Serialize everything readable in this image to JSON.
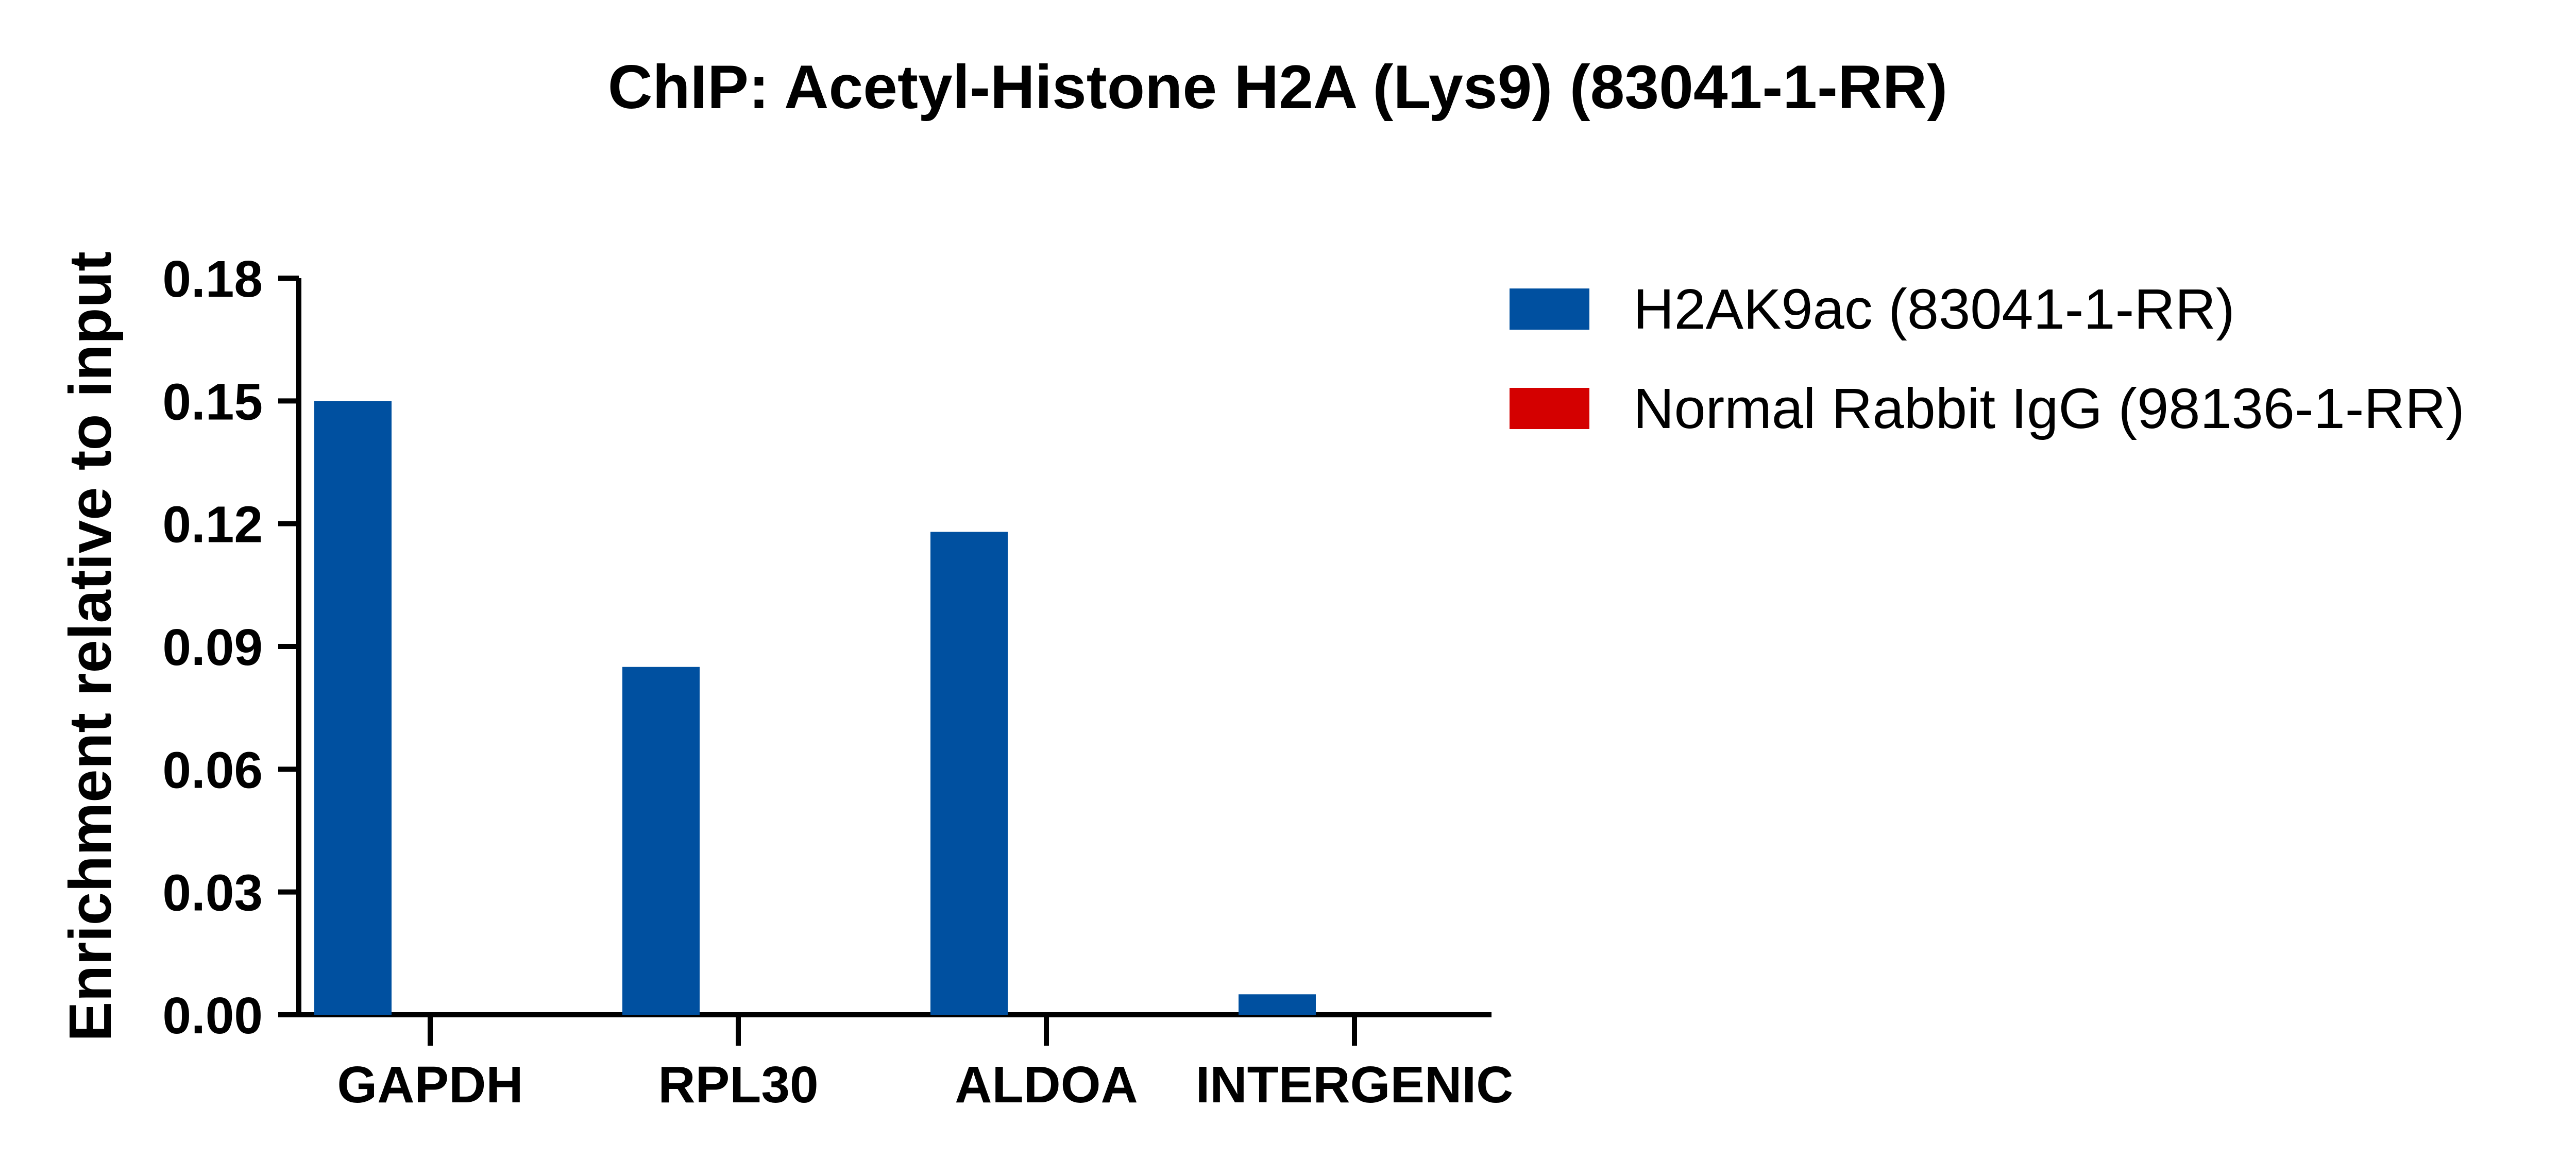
{
  "chart_data": {
    "type": "bar",
    "title": "ChIP: Acetyl-Histone H2A (Lys9) (83041-1-RR)",
    "xlabel": "",
    "ylabel": "Enrichment relative to input",
    "categories": [
      "GAPDH",
      "RPL30",
      "ALDOA",
      "INTERGENIC"
    ],
    "series": [
      {
        "name": "H2AK9ac (83041-1-RR)",
        "color": "#0050a0",
        "values": [
          0.15,
          0.085,
          0.118,
          0.005
        ]
      },
      {
        "name": "Normal Rabbit IgG (98136-1-RR)",
        "color": "#d40000",
        "values": [
          0.0,
          0.0,
          0.0,
          0.0
        ]
      }
    ],
    "ylim": [
      0,
      0.18
    ],
    "yticks": [
      "0.00",
      "0.03",
      "0.06",
      "0.09",
      "0.12",
      "0.15",
      "0.18"
    ],
    "grid": false,
    "legend_position": "top-right"
  }
}
